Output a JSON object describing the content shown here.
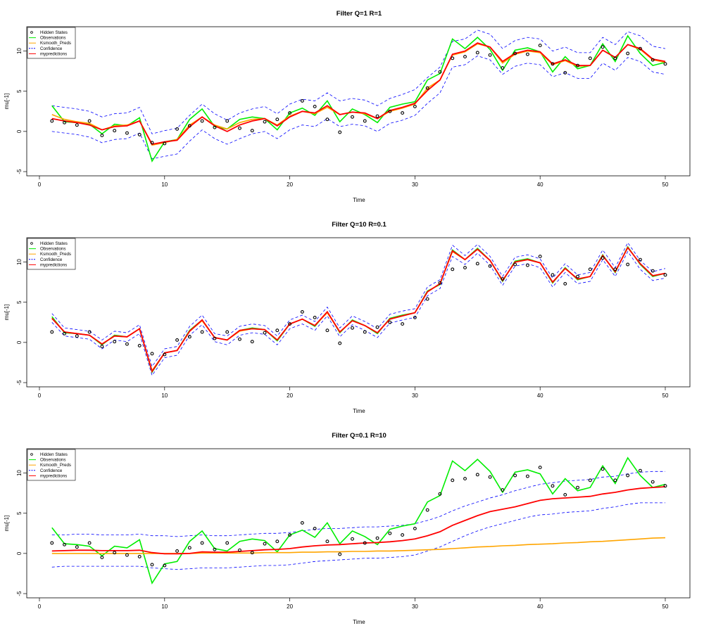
{
  "chart_data": [
    {
      "type": "line",
      "title": "Filter Q=1 R=1",
      "xlabel": "Time",
      "ylabel": "mu[-1]",
      "xlim": [
        1,
        50
      ],
      "ylim": [
        -5,
        12.5
      ],
      "x_ticks": [
        0,
        10,
        20,
        30,
        40,
        50
      ],
      "y_ticks": [
        -5,
        0,
        5,
        10
      ],
      "legend": "top-left",
      "legend_entries": [
        "Hidden States",
        "Observations",
        "Ksmooth_Preds",
        "Confidence",
        "mypredictions"
      ],
      "hidden_states": [
        1.3,
        1.1,
        0.8,
        1.3,
        -0.5,
        0.1,
        -0.2,
        -0.4,
        -1.4,
        -1.5,
        0.3,
        0.7,
        1.3,
        0.5,
        1.3,
        0.4,
        0.1,
        1.2,
        1.5,
        2.3,
        3.8,
        3.1,
        1.5,
        -0.1,
        1.8,
        1.3,
        1.9,
        2.5,
        2.3,
        3.1,
        5.4,
        7.4,
        9.1,
        9.3,
        9.8,
        9.5,
        7.9,
        9.7,
        9.6,
        10.7,
        8.4,
        7.3,
        8.2,
        9.1,
        10.5,
        9.1,
        9.7,
        10.3,
        8.9,
        8.4
      ],
      "series": [
        {
          "name": "Observations",
          "color": "#00ee00",
          "values": [
            3.2,
            1.2,
            1.1,
            0.9,
            -0.3,
            0.9,
            0.7,
            1.7,
            -3.7,
            -1.3,
            -1.0,
            1.5,
            2.8,
            0.6,
            0.3,
            1.5,
            1.8,
            1.6,
            0.2,
            2.3,
            2.9,
            2.0,
            3.8,
            1.2,
            2.8,
            2.1,
            1.1,
            3.0,
            3.4,
            3.7,
            6.4,
            7.2,
            11.5,
            10.3,
            11.7,
            10.2,
            7.6,
            10.1,
            10.4,
            9.9,
            7.4,
            9.3,
            7.8,
            8.2,
            10.9,
            8.7,
            11.9,
            9.7,
            8.2,
            8.6
          ]
        },
        {
          "name": "Ksmooth_Preds",
          "color": "#ffa500",
          "values": [
            2.1,
            1.5,
            1.2,
            1.0,
            0.2,
            0.7,
            0.8,
            1.3,
            -1.7,
            -1.4,
            -1.0,
            0.8,
            1.8,
            0.8,
            0.3,
            1.1,
            1.5,
            1.6,
            0.8,
            1.9,
            2.5,
            2.2,
            3.0,
            2.1,
            2.4,
            2.2,
            1.6,
            2.5,
            2.9,
            3.4,
            5.4,
            6.4,
            9.5,
            9.9,
            10.9,
            10.5,
            8.5,
            9.6,
            10.0,
            9.8,
            8.3,
            8.8,
            8.1,
            8.2,
            10.1,
            9.2,
            10.8,
            10.2,
            8.9,
            8.6
          ]
        },
        {
          "name": "Confidence",
          "color": "#0000ff",
          "values": [
            3.2,
            3.0,
            2.8,
            2.5,
            1.8,
            2.2,
            2.3,
            3.0,
            -0.3,
            0.1,
            0.4,
            2.0,
            3.4,
            2.2,
            1.4,
            2.3,
            2.8,
            3.1,
            2.2,
            3.4,
            4.0,
            3.8,
            4.8,
            3.8,
            4.1,
            3.9,
            3.2,
            4.1,
            4.6,
            5.2,
            6.7,
            8.0,
            11.2,
            11.5,
            12.6,
            12.1,
            10.3,
            11.3,
            11.7,
            11.5,
            10.0,
            10.5,
            9.8,
            9.8,
            11.7,
            10.8,
            12.4,
            11.9,
            10.6,
            10.3
          ]
        },
        {
          "name": "Confidence",
          "color": "#0000ff",
          "values": [
            0.0,
            -0.2,
            -0.4,
            -0.7,
            -1.4,
            -1.0,
            -0.9,
            -0.2,
            -3.4,
            -3.1,
            -2.8,
            -1.2,
            0.2,
            -0.9,
            -1.6,
            -0.9,
            -0.3,
            0.0,
            -0.9,
            0.2,
            0.8,
            0.6,
            1.6,
            0.6,
            0.9,
            0.7,
            0.0,
            1.0,
            1.4,
            2.0,
            3.5,
            4.8,
            8.0,
            8.3,
            9.4,
            8.9,
            7.1,
            8.1,
            8.5,
            8.3,
            6.8,
            7.3,
            6.6,
            6.6,
            8.5,
            7.6,
            9.2,
            8.7,
            7.4,
            7.1
          ]
        },
        {
          "name": "mypredictions",
          "color": "#ff0000",
          "values": [
            1.6,
            1.3,
            1.1,
            0.8,
            0.2,
            0.6,
            0.7,
            1.3,
            -1.6,
            -1.3,
            -1.1,
            0.6,
            1.8,
            0.7,
            0.0,
            0.8,
            1.3,
            1.6,
            0.7,
            1.8,
            2.5,
            2.3,
            3.2,
            2.1,
            2.4,
            2.3,
            1.6,
            2.6,
            3.0,
            3.5,
            5.1,
            6.4,
            9.6,
            10.0,
            11.0,
            10.5,
            8.7,
            9.7,
            10.1,
            9.9,
            8.4,
            8.9,
            8.2,
            8.2,
            10.1,
            9.2,
            10.8,
            10.3,
            9.0,
            8.7
          ]
        }
      ]
    },
    {
      "type": "line",
      "title": "Filter Q=10 R=0.1",
      "xlabel": "Time",
      "ylabel": "mu[-1]",
      "xlim": [
        1,
        50
      ],
      "ylim": [
        -5,
        12.5
      ],
      "x_ticks": [
        0,
        10,
        20,
        30,
        40,
        50
      ],
      "y_ticks": [
        -5,
        0,
        5,
        10
      ],
      "legend": "top-left",
      "legend_entries": [
        "Hidden States",
        "Observations",
        "Ksmooth_Preds",
        "Confidence",
        "mypredictions"
      ],
      "hidden_states": [
        1.3,
        1.1,
        0.8,
        1.3,
        -0.5,
        0.1,
        -0.2,
        -0.4,
        -1.4,
        -1.5,
        0.3,
        0.7,
        1.3,
        0.5,
        1.3,
        0.4,
        0.1,
        1.2,
        1.5,
        2.3,
        3.8,
        3.1,
        1.5,
        -0.1,
        1.8,
        1.3,
        1.9,
        2.5,
        2.3,
        3.1,
        5.4,
        7.4,
        9.1,
        9.3,
        9.8,
        9.5,
        7.9,
        9.7,
        9.6,
        10.7,
        8.4,
        7.3,
        8.2,
        9.1,
        10.5,
        9.1,
        9.7,
        10.3,
        8.9,
        8.4
      ],
      "series": [
        {
          "name": "Observations",
          "color": "#00ee00",
          "values": [
            3.2,
            1.2,
            1.1,
            0.9,
            -0.3,
            0.9,
            0.7,
            1.7,
            -3.7,
            -1.3,
            -1.0,
            1.5,
            2.8,
            0.6,
            0.3,
            1.5,
            1.8,
            1.6,
            0.2,
            2.3,
            2.9,
            2.0,
            3.8,
            1.2,
            2.8,
            2.1,
            1.1,
            3.0,
            3.4,
            3.7,
            6.4,
            7.2,
            11.5,
            10.3,
            11.7,
            10.2,
            7.6,
            10.1,
            10.4,
            9.9,
            7.4,
            9.3,
            7.8,
            8.2,
            10.9,
            8.7,
            11.9,
            9.7,
            8.2,
            8.6
          ]
        },
        {
          "name": "Ksmooth_Preds",
          "color": "#ffa500",
          "values": [
            3.0,
            1.3,
            1.1,
            0.9,
            -0.2,
            0.8,
            0.7,
            1.7,
            -3.5,
            -1.3,
            -1.0,
            1.4,
            2.7,
            0.6,
            0.3,
            1.4,
            1.7,
            1.6,
            0.3,
            2.3,
            2.9,
            2.1,
            3.7,
            1.3,
            2.7,
            2.1,
            1.2,
            2.9,
            3.3,
            3.7,
            6.3,
            7.3,
            11.3,
            10.3,
            11.6,
            10.2,
            7.7,
            10.0,
            10.3,
            9.9,
            7.5,
            9.2,
            7.9,
            8.2,
            10.8,
            8.8,
            11.8,
            9.8,
            8.3,
            8.6
          ]
        },
        {
          "name": "Confidence",
          "color": "#0000ff",
          "values": [
            3.6,
            1.8,
            1.6,
            1.4,
            0.3,
            1.4,
            1.2,
            2.2,
            -3.0,
            -0.8,
            -0.5,
            2.0,
            3.4,
            1.1,
            0.8,
            2.0,
            2.3,
            2.1,
            0.8,
            2.8,
            3.4,
            2.6,
            4.4,
            1.8,
            3.3,
            2.6,
            1.7,
            3.5,
            3.9,
            4.2,
            6.9,
            7.8,
            12.1,
            10.8,
            12.2,
            10.7,
            8.2,
            10.6,
            10.9,
            10.4,
            8.0,
            9.8,
            8.4,
            8.7,
            11.5,
            9.3,
            12.4,
            10.2,
            8.8,
            9.2
          ]
        },
        {
          "name": "Confidence",
          "color": "#0000ff",
          "values": [
            2.5,
            0.8,
            0.6,
            0.4,
            -0.8,
            0.3,
            0.1,
            1.1,
            -4.1,
            -1.9,
            -1.6,
            0.9,
            2.2,
            0.1,
            -0.3,
            0.9,
            1.2,
            1.0,
            -0.3,
            1.7,
            2.3,
            1.5,
            3.3,
            0.7,
            2.2,
            1.5,
            0.6,
            2.4,
            2.8,
            3.1,
            5.8,
            6.7,
            10.7,
            9.7,
            11.1,
            9.6,
            7.1,
            9.5,
            9.8,
            9.3,
            6.9,
            8.7,
            7.3,
            7.6,
            10.3,
            8.2,
            11.3,
            9.1,
            7.7,
            8.0
          ]
        },
        {
          "name": "mypredictions",
          "color": "#ff0000",
          "values": [
            3.0,
            1.3,
            1.1,
            0.9,
            -0.2,
            0.8,
            0.7,
            1.7,
            -3.6,
            -1.3,
            -1.0,
            1.4,
            2.8,
            0.6,
            0.3,
            1.5,
            1.7,
            1.6,
            0.3,
            2.3,
            2.9,
            2.1,
            3.8,
            1.3,
            2.7,
            2.1,
            1.2,
            2.9,
            3.3,
            3.7,
            6.3,
            7.3,
            11.4,
            10.3,
            11.6,
            10.2,
            7.7,
            10.0,
            10.3,
            9.9,
            7.5,
            9.2,
            7.9,
            8.2,
            10.8,
            8.8,
            11.8,
            9.8,
            8.3,
            8.6
          ]
        }
      ]
    },
    {
      "type": "line",
      "title": "Filter Q=0.1 R=10",
      "xlabel": "Time",
      "ylabel": "mu[-1]",
      "xlim": [
        1,
        50
      ],
      "ylim": [
        -5,
        12.5
      ],
      "x_ticks": [
        0,
        10,
        20,
        30,
        40,
        50
      ],
      "y_ticks": [
        -5,
        0,
        5,
        10
      ],
      "legend": "top-left",
      "legend_entries": [
        "Hidden States",
        "Observations",
        "Ksmooth_Preds",
        "Confidence",
        "mypredictions"
      ],
      "hidden_states": [
        1.3,
        1.1,
        0.8,
        1.3,
        -0.5,
        0.1,
        -0.2,
        -0.4,
        -1.4,
        -1.5,
        0.3,
        0.7,
        1.3,
        0.5,
        1.3,
        0.4,
        0.1,
        1.2,
        1.5,
        2.3,
        3.8,
        3.1,
        1.5,
        -0.1,
        1.8,
        1.3,
        1.9,
        2.5,
        2.3,
        3.1,
        5.4,
        7.4,
        9.1,
        9.3,
        9.8,
        9.5,
        7.9,
        9.7,
        9.6,
        10.7,
        8.4,
        7.3,
        8.2,
        9.1,
        10.5,
        9.1,
        9.7,
        10.3,
        8.9,
        8.4
      ],
      "series": [
        {
          "name": "Observations",
          "color": "#00ee00",
          "values": [
            3.2,
            1.2,
            1.1,
            0.9,
            -0.3,
            0.9,
            0.7,
            1.7,
            -3.7,
            -1.3,
            -1.0,
            1.5,
            2.8,
            0.6,
            0.3,
            1.5,
            1.8,
            1.6,
            0.2,
            2.3,
            2.9,
            2.0,
            3.8,
            1.2,
            2.8,
            2.1,
            1.1,
            3.0,
            3.4,
            3.7,
            6.4,
            7.2,
            11.5,
            10.3,
            11.7,
            10.2,
            7.6,
            10.1,
            10.4,
            9.9,
            7.4,
            9.3,
            7.8,
            8.2,
            10.9,
            8.7,
            11.9,
            9.7,
            8.2,
            8.6
          ]
        },
        {
          "name": "Ksmooth_Preds",
          "color": "#ffa500",
          "values": [
            0.0,
            0.0,
            0.0,
            0.0,
            0.0,
            0.0,
            0.0,
            0.0,
            0.0,
            0.0,
            0.0,
            0.0,
            0.05,
            0.05,
            0.05,
            0.05,
            0.05,
            0.1,
            0.1,
            0.1,
            0.15,
            0.15,
            0.2,
            0.2,
            0.25,
            0.25,
            0.3,
            0.3,
            0.35,
            0.4,
            0.45,
            0.5,
            0.6,
            0.7,
            0.8,
            0.85,
            0.95,
            1.0,
            1.1,
            1.15,
            1.2,
            1.3,
            1.35,
            1.45,
            1.5,
            1.6,
            1.7,
            1.8,
            1.9,
            1.95
          ]
        },
        {
          "name": "Confidence",
          "color": "#0000ff",
          "values": [
            2.3,
            2.3,
            2.4,
            2.4,
            2.3,
            2.3,
            2.3,
            2.4,
            2.2,
            2.2,
            2.1,
            2.2,
            2.3,
            2.2,
            2.2,
            2.3,
            2.4,
            2.5,
            2.5,
            2.6,
            2.8,
            3.0,
            3.1,
            3.1,
            3.2,
            3.3,
            3.3,
            3.4,
            3.5,
            3.7,
            4.1,
            4.6,
            5.3,
            5.9,
            6.4,
            6.9,
            7.3,
            7.8,
            8.2,
            8.6,
            8.8,
            9.0,
            9.1,
            9.2,
            9.5,
            9.6,
            9.9,
            10.1,
            10.2,
            10.2
          ]
        },
        {
          "name": "Confidence",
          "color": "#0000ff",
          "values": [
            -1.7,
            -1.6,
            -1.6,
            -1.6,
            -1.6,
            -1.6,
            -1.6,
            -1.6,
            -1.8,
            -1.9,
            -2.0,
            -1.9,
            -1.8,
            -1.8,
            -1.8,
            -1.7,
            -1.6,
            -1.5,
            -1.5,
            -1.4,
            -1.2,
            -1.0,
            -0.9,
            -0.8,
            -0.7,
            -0.6,
            -0.6,
            -0.5,
            -0.4,
            -0.2,
            0.3,
            0.8,
            1.5,
            2.2,
            2.8,
            3.3,
            3.7,
            4.1,
            4.5,
            4.8,
            4.9,
            5.1,
            5.2,
            5.3,
            5.6,
            5.8,
            6.1,
            6.3,
            6.3,
            6.3
          ]
        },
        {
          "name": "mypredictions",
          "color": "#ff0000",
          "values": [
            0.3,
            0.35,
            0.4,
            0.4,
            0.35,
            0.35,
            0.35,
            0.4,
            0.1,
            -0.05,
            -0.05,
            0.0,
            0.2,
            0.15,
            0.15,
            0.25,
            0.35,
            0.45,
            0.5,
            0.6,
            0.8,
            0.95,
            1.05,
            1.1,
            1.2,
            1.3,
            1.35,
            1.45,
            1.6,
            1.8,
            2.2,
            2.7,
            3.5,
            4.1,
            4.7,
            5.2,
            5.5,
            5.8,
            6.2,
            6.6,
            6.8,
            6.9,
            7.0,
            7.1,
            7.4,
            7.6,
            7.9,
            8.1,
            8.2,
            8.3
          ]
        }
      ]
    }
  ]
}
